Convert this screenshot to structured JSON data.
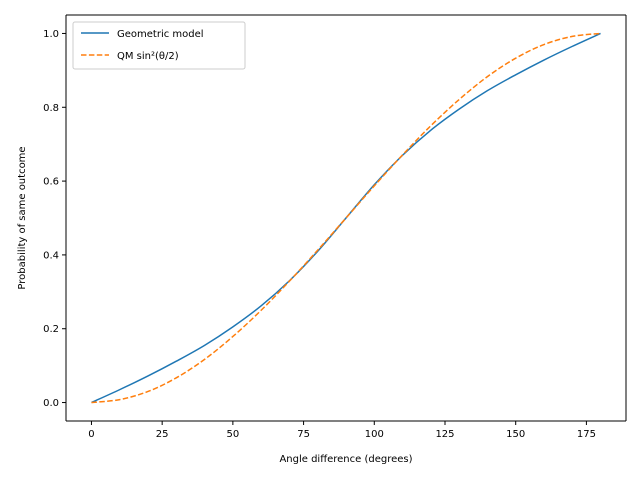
{
  "chart_data": {
    "type": "line",
    "title": "",
    "xlabel": "Angle difference (degrees)",
    "ylabel": "Probability of same outcome",
    "xlim": [
      -9,
      189
    ],
    "ylim": [
      -0.05,
      1.05
    ],
    "xticks": [
      0,
      25,
      50,
      75,
      100,
      125,
      150,
      175
    ],
    "yticks": [
      0.0,
      0.2,
      0.4,
      0.6,
      0.8,
      1.0
    ],
    "xtick_labels": [
      "0",
      "25",
      "50",
      "75",
      "100",
      "125",
      "150",
      "175"
    ],
    "ytick_labels": [
      "0.0",
      "0.2",
      "0.4",
      "0.6",
      "0.8",
      "1.0"
    ],
    "grid": false,
    "legend_position": "upper-left",
    "x": [
      0,
      10,
      20,
      30,
      40,
      50,
      60,
      70,
      80,
      90,
      100,
      110,
      120,
      130,
      140,
      150,
      160,
      170,
      180
    ],
    "series": [
      {
        "name": "Geometric model",
        "color": "#1f77b4",
        "style": "solid",
        "values": [
          0.0,
          0.035,
          0.072,
          0.112,
          0.155,
          0.205,
          0.262,
          0.33,
          0.41,
          0.5,
          0.59,
          0.67,
          0.738,
          0.795,
          0.845,
          0.888,
          0.928,
          0.965,
          1.0
        ]
      },
      {
        "name": "QM sin²(θ/2)",
        "color": "#ff7f0e",
        "style": "dashed",
        "values": [
          0.0,
          0.008,
          0.03,
          0.067,
          0.117,
          0.179,
          0.25,
          0.329,
          0.413,
          0.5,
          0.587,
          0.671,
          0.75,
          0.821,
          0.883,
          0.933,
          0.97,
          0.992,
          1.0
        ]
      }
    ]
  }
}
